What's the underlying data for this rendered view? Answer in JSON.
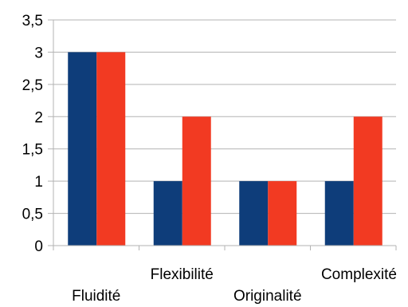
{
  "chart_data": {
    "type": "bar",
    "title": "",
    "xlabel": "",
    "ylabel": "",
    "categories": [
      "Fluidité",
      "Flexibilité",
      "Originalité",
      "Complexité"
    ],
    "series": [
      {
        "values": [
          3,
          1,
          1,
          1
        ],
        "color": "#0e3d7a"
      },
      {
        "values": [
          3,
          2,
          1,
          2
        ],
        "color": "#f23a22"
      }
    ],
    "ylim": [
      0,
      3.5
    ],
    "yticks": [
      "0",
      "0,5",
      "1",
      "1,5",
      "2",
      "2,5",
      "3",
      "3,5"
    ],
    "grid": true,
    "legend": "none"
  }
}
